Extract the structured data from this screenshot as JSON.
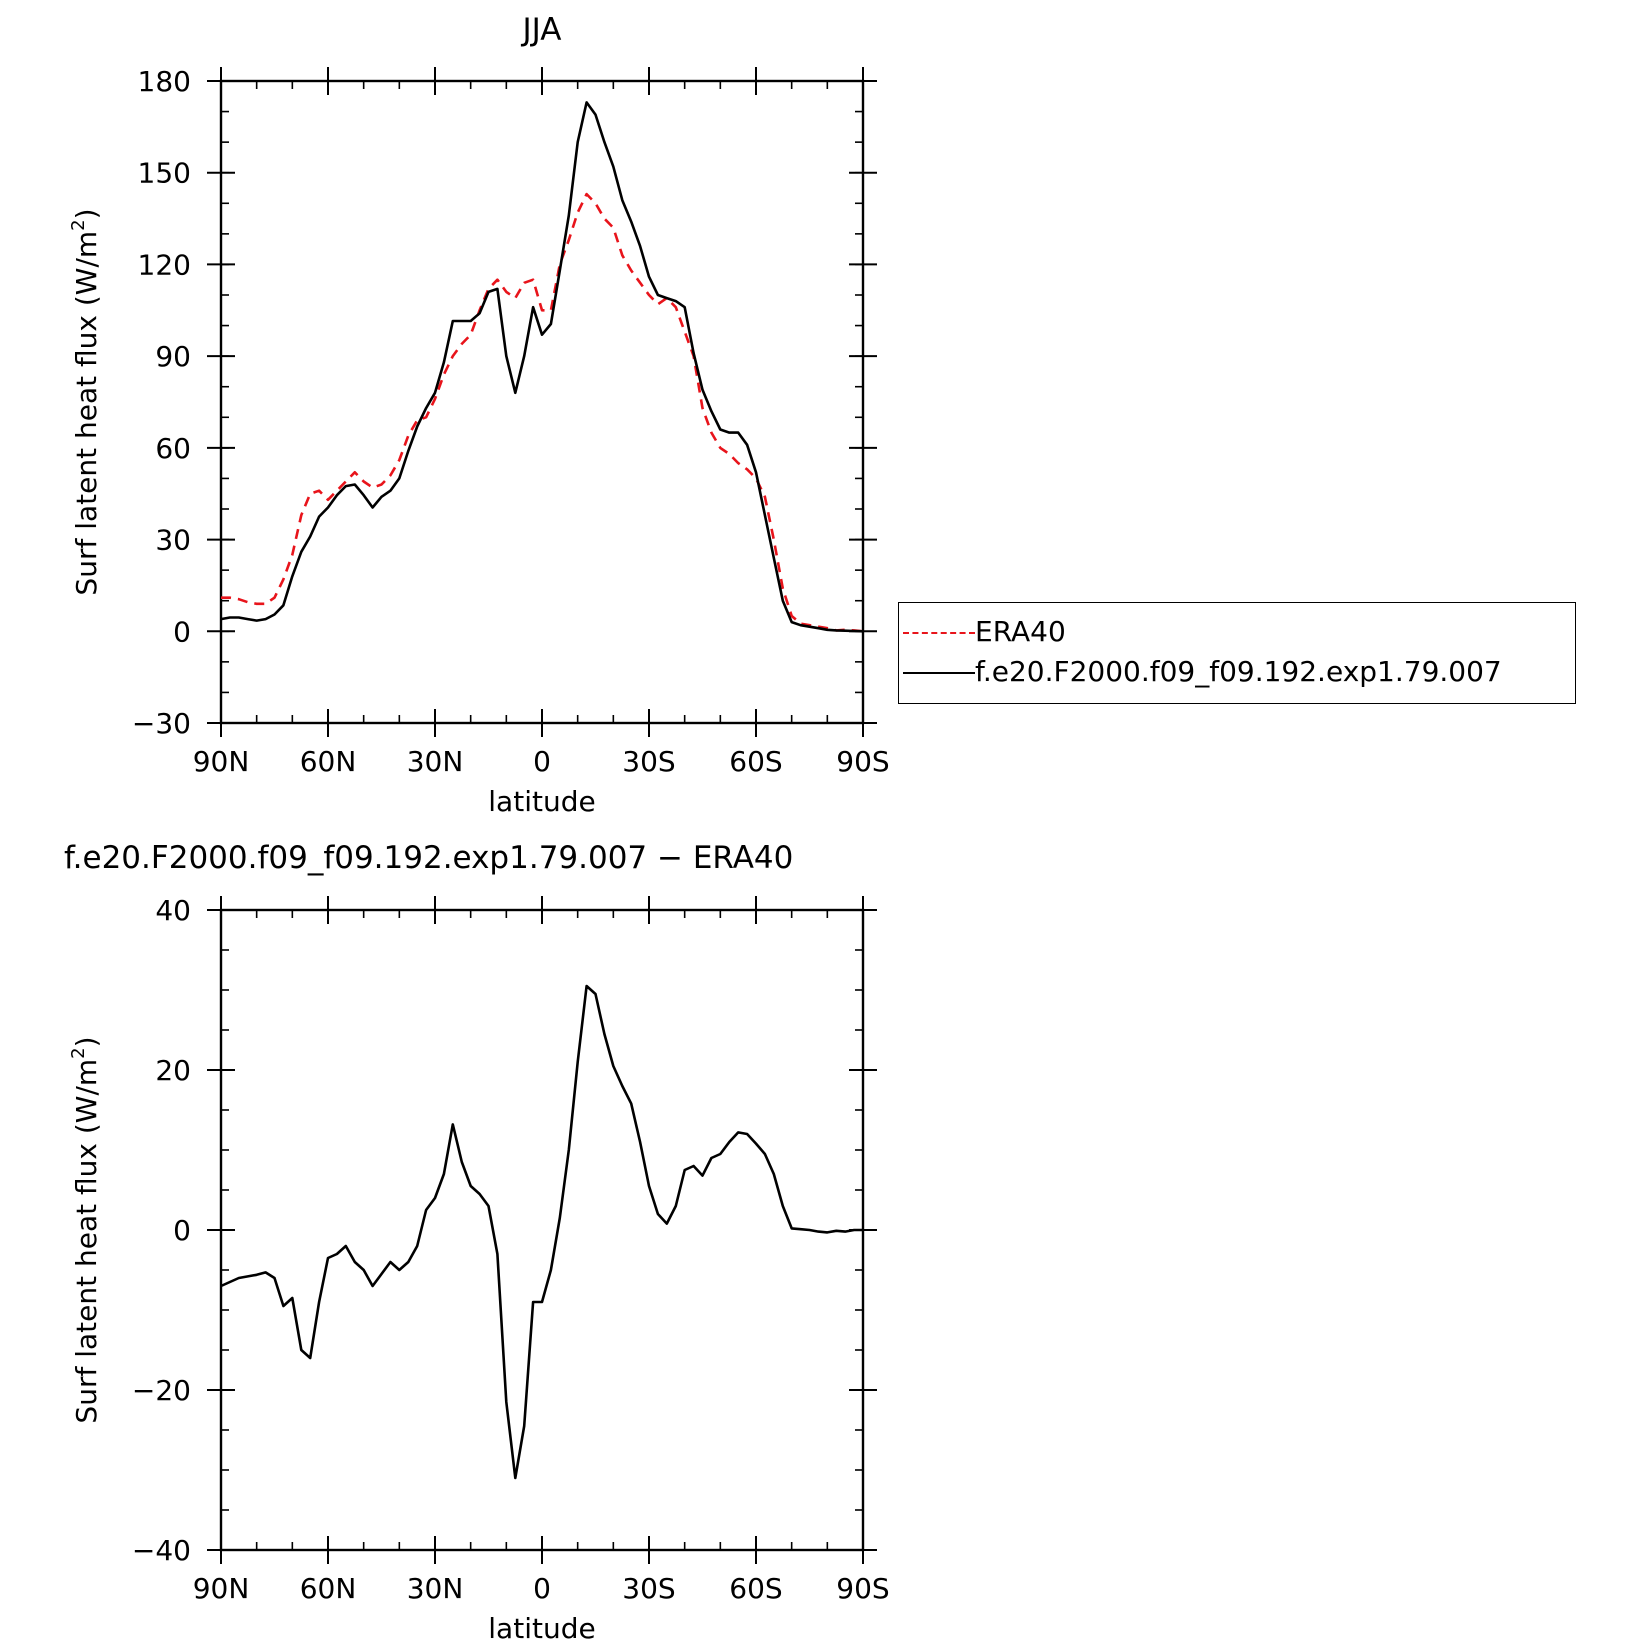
{
  "chart_data": [
    {
      "type": "line",
      "title": "JJA",
      "xlabel": "latitude",
      "ylabel": "Surf latent heat flux (W/m",
      "ylabel_sup": "2",
      "ylabel_tail": ")",
      "xlim": [
        90,
        -90
      ],
      "ylim": [
        -30,
        180
      ],
      "x_ticks": [
        90,
        60,
        30,
        0,
        -30,
        -60,
        -90
      ],
      "x_tick_labels": [
        "90N",
        "60N",
        "30N",
        "0",
        "30S",
        "60S",
        "90S"
      ],
      "y_ticks": [
        -30,
        0,
        30,
        60,
        90,
        120,
        150,
        180
      ],
      "y_tick_labels": [
        "−30",
        "0",
        "30",
        "60",
        "90",
        "120",
        "150",
        "180"
      ],
      "legend_position": "right",
      "series": [
        {
          "name": "ERA40",
          "color": "#e8141b",
          "style": "dashed",
          "x": [
            90,
            87.5,
            85,
            82.5,
            80,
            77.5,
            75,
            72.5,
            70,
            67.5,
            65,
            62.5,
            60,
            57.5,
            55,
            52.5,
            50,
            47.5,
            45,
            42.5,
            40,
            37.5,
            35,
            32.5,
            30,
            27.5,
            25,
            22.5,
            20,
            17.5,
            15,
            12.5,
            10,
            7.5,
            5,
            2.5,
            0,
            -2.5,
            -5,
            -7.5,
            -10,
            -12.5,
            -15,
            -17.5,
            -20,
            -22.5,
            -25,
            -27.5,
            -30,
            -32.5,
            -35,
            -37.5,
            -40,
            -42.5,
            -45,
            -47.5,
            -50,
            -52.5,
            -55,
            -57.5,
            -60,
            -62.5,
            -65,
            -67.5,
            -70,
            -72.5,
            -75,
            -77.5,
            -80,
            -82.5,
            -85,
            -87.5,
            -90
          ],
          "y": [
            11,
            11,
            10.5,
            9.5,
            9,
            9,
            11,
            17,
            25,
            38,
            45,
            46,
            43,
            46,
            49,
            52,
            49,
            47,
            48,
            51,
            56,
            64,
            69,
            70,
            76,
            84,
            90,
            94,
            97,
            105,
            112,
            115,
            111,
            109,
            114,
            115,
            105,
            105,
            120,
            128,
            137,
            143,
            140,
            135,
            132,
            123,
            118,
            114,
            110,
            107,
            109,
            106,
            98,
            90,
            73,
            65,
            60,
            58,
            55,
            53,
            50,
            44,
            30,
            14,
            5,
            2.5,
            2,
            1.5,
            1,
            0.3,
            0.5,
            0.3,
            0
          ]
        },
        {
          "name": "f.e20.F2000.f09_f09.192.exp1.79.007",
          "color": "#000000",
          "style": "solid",
          "x": [
            90,
            87.5,
            85,
            82.5,
            80,
            77.5,
            75,
            72.5,
            70,
            67.5,
            65,
            62.5,
            60,
            57.5,
            55,
            52.5,
            50,
            47.5,
            45,
            42.5,
            40,
            37.5,
            35,
            32.5,
            30,
            27.5,
            25,
            22.5,
            20,
            17.5,
            15,
            12.5,
            10,
            7.5,
            5,
            2.5,
            0,
            -2.5,
            -5,
            -7.5,
            -10,
            -12.5,
            -15,
            -17.5,
            -20,
            -22.5,
            -25,
            -27.5,
            -30,
            -32.5,
            -35,
            -37.5,
            -40,
            -42.5,
            -45,
            -47.5,
            -50,
            -52.5,
            -55,
            -57.5,
            -60,
            -62.5,
            -65,
            -67.5,
            -70,
            -72.5,
            -75,
            -77.5,
            -80,
            -82.5,
            -85,
            -87.5,
            -90
          ],
          "y": [
            4,
            4.5,
            4.5,
            4,
            3.5,
            4,
            5.5,
            8.5,
            18,
            26,
            31,
            37.5,
            40.5,
            44.5,
            47.5,
            48,
            44.5,
            40.5,
            44,
            46,
            50,
            59,
            67,
            73,
            78,
            88,
            101.5,
            101.5,
            101.5,
            104,
            111,
            112,
            90,
            78,
            90,
            106,
            97,
            100.5,
            118,
            136,
            160,
            173,
            169,
            160,
            152,
            141,
            134,
            126,
            116,
            110,
            109,
            108,
            106,
            91,
            79,
            72,
            66,
            65,
            65,
            61,
            52,
            38,
            24,
            10,
            3,
            2,
            1.5,
            1,
            0.5,
            0.3,
            0.2,
            0.1,
            0
          ]
        }
      ]
    },
    {
      "type": "line",
      "title": "f.e20.F2000.f09_f09.192.exp1.79.007 − ERA40",
      "xlabel": "latitude",
      "ylabel": "Surf latent heat flux (W/m",
      "ylabel_sup": "2",
      "ylabel_tail": ")",
      "xlim": [
        90,
        -90
      ],
      "ylim": [
        -40,
        40
      ],
      "x_ticks": [
        90,
        60,
        30,
        0,
        -30,
        -60,
        -90
      ],
      "x_tick_labels": [
        "90N",
        "60N",
        "30N",
        "0",
        "30S",
        "60S",
        "90S"
      ],
      "y_ticks": [
        -40,
        -20,
        0,
        20,
        40
      ],
      "y_tick_labels": [
        "−40",
        "−20",
        "0",
        "20",
        "40"
      ],
      "series": [
        {
          "color": "#000000",
          "style": "solid",
          "x": [
            90,
            87.5,
            85,
            82.5,
            80,
            77.5,
            75,
            72.5,
            70,
            67.5,
            65,
            62.5,
            60,
            57.5,
            55,
            52.5,
            50,
            47.5,
            45,
            42.5,
            40,
            37.5,
            35,
            32.5,
            30,
            27.5,
            25,
            22.5,
            20,
            17.5,
            15,
            12.5,
            10,
            7.5,
            5,
            2.5,
            0,
            -2.5,
            -5,
            -7.5,
            -10,
            -12.5,
            -15,
            -17.5,
            -20,
            -22.5,
            -25,
            -27.5,
            -30,
            -32.5,
            -35,
            -37.5,
            -40,
            -42.5,
            -45,
            -47.5,
            -50,
            -52.5,
            -55,
            -57.5,
            -60,
            -62.5,
            -65,
            -67.5,
            -70,
            -72.5,
            -75,
            -77.5,
            -80,
            -82.5,
            -85,
            -87.5,
            -90
          ],
          "y": [
            -7,
            -6.5,
            -6,
            -5.8,
            -5.6,
            -5.3,
            -6,
            -9.5,
            -8.5,
            -15,
            -16,
            -9,
            -3.5,
            -3,
            -2,
            -4,
            -5,
            -7,
            -5.5,
            -4,
            -5,
            -4,
            -2,
            2.5,
            4,
            7,
            13.2,
            8.5,
            5.5,
            4.5,
            3,
            -3,
            -21.5,
            -31,
            -24.5,
            -9,
            -9,
            -5,
            1.5,
            10,
            21,
            30.5,
            29.5,
            24.5,
            20.5,
            18,
            15.8,
            11,
            5.5,
            2,
            0.8,
            3,
            7.5,
            8,
            6.8,
            9,
            9.5,
            11,
            12.2,
            12,
            10.8,
            9.5,
            7,
            3,
            0.2,
            0.1,
            0,
            -0.2,
            -0.3,
            -0.1,
            -0.2,
            0,
            0
          ]
        }
      ]
    }
  ]
}
